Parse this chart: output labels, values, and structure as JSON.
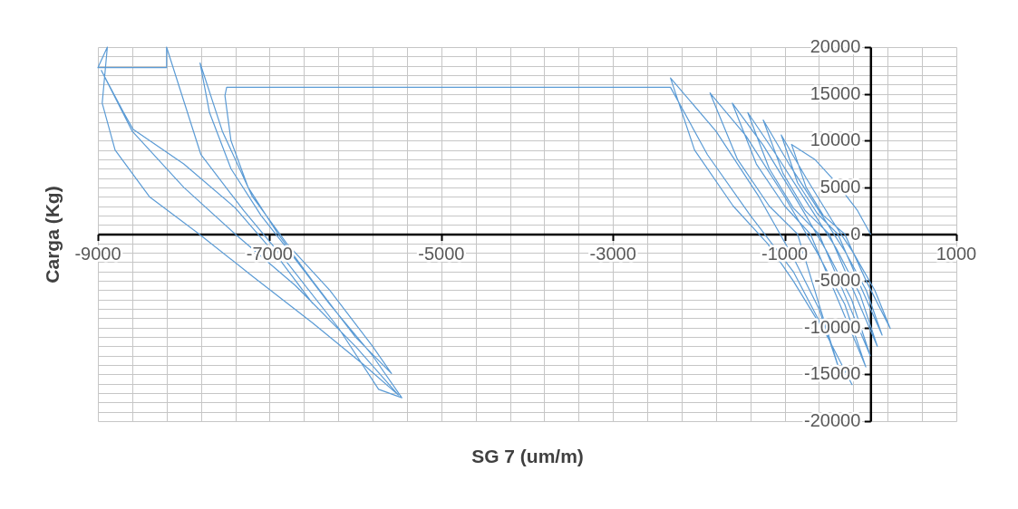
{
  "chart_data": {
    "type": "line",
    "xlabel": "SG 7 (um/m)",
    "ylabel": "Carga (Kg)",
    "xlim": [
      -9000,
      1000
    ],
    "ylim": [
      -20000,
      20000
    ],
    "xticks": [
      -9000,
      {
        "value": -8600,
        "label": null
      },
      {
        "value": -8200,
        "label": null
      },
      {
        "value": -7800,
        "label": null
      },
      {
        "value": -7400,
        "label": null
      },
      -7000,
      {
        "value": -6600,
        "label": null
      },
      {
        "value": -6200,
        "label": null
      },
      {
        "value": -5800,
        "label": null
      },
      {
        "value": -5400,
        "label": null
      },
      -5000,
      {
        "value": -4600,
        "label": null
      },
      {
        "value": -4200,
        "label": null
      },
      {
        "value": -3800,
        "label": null
      },
      {
        "value": -3400,
        "label": null
      },
      -3000,
      {
        "value": -2600,
        "label": null
      },
      {
        "value": -2200,
        "label": null
      },
      {
        "value": -1800,
        "label": null
      },
      {
        "value": -1400,
        "label": null
      },
      -1000,
      {
        "value": -600,
        "label": null
      },
      {
        "value": -200,
        "label": null
      },
      {
        "value": 200,
        "label": null
      },
      {
        "value": 600,
        "label": null
      },
      1000
    ],
    "yticks": [
      -20000,
      {
        "value": -19000,
        "label": null
      },
      {
        "value": -18000,
        "label": null
      },
      {
        "value": -17000,
        "label": null
      },
      {
        "value": -16000,
        "label": null
      },
      -15000,
      {
        "value": -14000,
        "label": null
      },
      {
        "value": -13000,
        "label": null
      },
      {
        "value": -12000,
        "label": null
      },
      {
        "value": -11000,
        "label": null
      },
      -10000,
      {
        "value": -9000,
        "label": null
      },
      {
        "value": -8000,
        "label": null
      },
      {
        "value": -7000,
        "label": null
      },
      {
        "value": -6000,
        "label": null
      },
      -5000,
      {
        "value": -4000,
        "label": null
      },
      {
        "value": -3000,
        "label": null
      },
      {
        "value": -2000,
        "label": null
      },
      {
        "value": -1000,
        "label": null
      },
      0,
      {
        "value": 1000,
        "label": null
      },
      {
        "value": 2000,
        "label": null
      },
      {
        "value": 3000,
        "label": null
      },
      {
        "value": 4000,
        "label": null
      },
      5000,
      {
        "value": 6000,
        "label": null
      },
      {
        "value": 7000,
        "label": null
      },
      {
        "value": 8000,
        "label": null
      },
      {
        "value": 9000,
        "label": null
      },
      10000,
      {
        "value": 11000,
        "label": null
      },
      {
        "value": 12000,
        "label": null
      },
      {
        "value": 13000,
        "label": null
      },
      {
        "value": 14000,
        "label": null
      },
      15000,
      {
        "value": 16000,
        "label": null
      },
      {
        "value": 17000,
        "label": null
      },
      {
        "value": 18000,
        "label": null
      },
      {
        "value": 19000,
        "label": null
      },
      20000
    ],
    "grid": true,
    "series": [
      {
        "color": "#5b9bd5",
        "x": [
          0,
          -150,
          -400,
          -650,
          -920,
          -750,
          -550,
          -300,
          -50,
          230,
          50,
          -200,
          -450,
          -750,
          -1040,
          -850,
          -620,
          -380,
          -120,
          135,
          -50,
          -300,
          -600,
          -950,
          -1250,
          -1020,
          -760,
          -480,
          -200,
          80,
          -120,
          -400,
          -750,
          -1100,
          -1430,
          -1180,
          -900,
          -600,
          -300,
          -3,
          -220,
          -500,
          -850,
          -1250,
          -1610,
          -1330,
          -1000,
          -700,
          -380,
          -55,
          -300,
          -620,
          -1000,
          -1450,
          -1870,
          -1550,
          -1180,
          -850,
          -600,
          -350,
          -600,
          -900,
          -1300,
          -1800,
          -2330,
          -2050,
          -1600,
          -1200,
          -900,
          -500,
          -215,
          -500,
          -900,
          -1400,
          -1900,
          -2330,
          -7500,
          -7520,
          -7450,
          -7250,
          -6900,
          -6500,
          -6000,
          -5580,
          -5800,
          -6300,
          -6800,
          -7200,
          -7550,
          -7810,
          -7700,
          -7450,
          -7100,
          -6800,
          -6300,
          -5800,
          -5460,
          -5730,
          -6200,
          -6800,
          -7300,
          -7800,
          -8200,
          -8200,
          -9000,
          -8890,
          -8950,
          -8800,
          -8400,
          -7820,
          -7200,
          -6500,
          -5900,
          -5500,
          -6000,
          -6700,
          -7400,
          -8000,
          -8600,
          -8960,
          -8700,
          -8590,
          -8000,
          -7400,
          -6900,
          -6500
        ],
        "values": [
          0,
          2500,
          5500,
          8000,
          9600,
          5000,
          2000,
          0,
          -5000,
          -10100,
          -6000,
          -2000,
          1500,
          6000,
          10600,
          5500,
          2200,
          0,
          -5500,
          -10800,
          -6000,
          -1800,
          2500,
          7500,
          12200,
          6500,
          2500,
          0,
          -6000,
          -12000,
          -6500,
          -1500,
          3500,
          8500,
          13000,
          7000,
          2800,
          0,
          -6500,
          -13000,
          -7000,
          -2000,
          3500,
          9500,
          14000,
          7500,
          3000,
          0,
          -7000,
          -14200,
          -7500,
          -2000,
          4000,
          10500,
          15100,
          8000,
          3000,
          0,
          -7500,
          -14900,
          -8000,
          -2500,
          4000,
          11000,
          16700,
          9000,
          3000,
          -1000,
          -5000,
          -11000,
          -16100,
          -11000,
          -4000,
          2000,
          8500,
          15700,
          15700,
          14800,
          10000,
          5000,
          0,
          -5000,
          -11000,
          -14900,
          -12000,
          -6000,
          -1000,
          4000,
          11000,
          18300,
          13000,
          7000,
          2000,
          -1500,
          -7500,
          -13000,
          -17500,
          -16600,
          -10000,
          -3000,
          2500,
          8500,
          20000,
          17800,
          17800,
          20000,
          14000,
          9000,
          4000,
          0,
          -4500,
          -9500,
          -14000,
          -17200,
          -12000,
          -5500,
          0,
          5000,
          11000,
          17500,
          13000,
          11200,
          7500,
          2800,
          -2500,
          -7400
        ]
      }
    ]
  }
}
